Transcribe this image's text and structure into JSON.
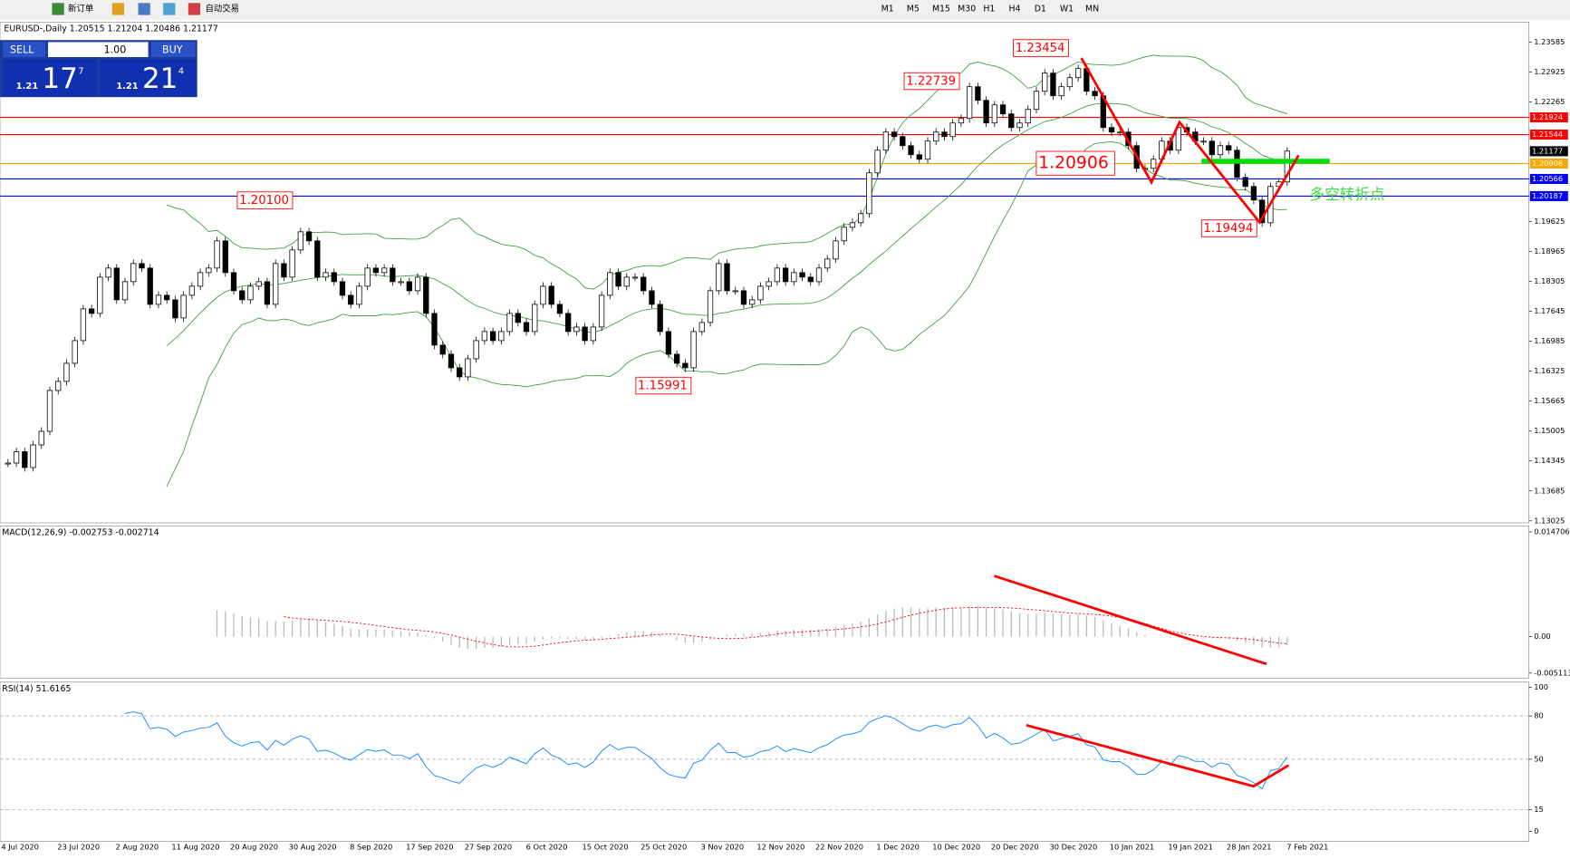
{
  "toolbar": {
    "new_order": "新订单",
    "auto_trading": "自动交易",
    "timeframes": [
      "M1",
      "M5",
      "M15",
      "M30",
      "H1",
      "H4",
      "D1",
      "W1",
      "MN"
    ]
  },
  "trade_panel": {
    "sell": "SELL",
    "buy": "BUY",
    "lots": "1.00",
    "sell_price": {
      "prefix": "1.21",
      "big": "17",
      "small": "7"
    },
    "buy_price": {
      "prefix": "1.21",
      "big": "21",
      "small": "4"
    }
  },
  "price_chart": {
    "header": "EURUSD-,Daily  1.20515 1.21204 1.20486 1.21177",
    "ylim": [
      1.13025,
      1.23585
    ],
    "yticks": [
      1.23585,
      1.22925,
      1.22265,
      1.19625,
      1.18965,
      1.18305,
      1.17645,
      1.16985,
      1.16325,
      1.15665,
      1.15005,
      1.14345,
      1.13685,
      1.13025
    ],
    "levels": [
      {
        "value": 1.21924,
        "color": "#ff0000"
      },
      {
        "value": 1.21544,
        "color": "#ff0000"
      },
      {
        "value": 1.20906,
        "color": "#ffa500"
      },
      {
        "value": 1.20566,
        "color": "#0000ff"
      },
      {
        "value": 1.20187,
        "color": "#0000ff"
      }
    ],
    "current_price": 1.21177,
    "closes": [
      1.143,
      1.1455,
      1.142,
      1.147,
      1.15,
      1.159,
      1.161,
      1.165,
      1.17,
      1.177,
      1.176,
      1.184,
      1.186,
      1.179,
      1.183,
      1.187,
      1.186,
      1.178,
      1.18,
      1.179,
      1.175,
      1.18,
      1.182,
      1.185,
      1.186,
      1.192,
      1.185,
      1.181,
      1.179,
      1.182,
      1.183,
      1.178,
      1.187,
      1.184,
      1.19,
      1.194,
      1.192,
      1.184,
      1.185,
      1.183,
      1.18,
      1.178,
      1.182,
      1.186,
      1.185,
      1.186,
      1.183,
      1.183,
      1.181,
      1.184,
      1.176,
      1.169,
      1.167,
      1.164,
      1.162,
      1.166,
      1.17,
      1.172,
      1.17,
      1.172,
      1.176,
      1.174,
      1.172,
      1.178,
      1.182,
      1.178,
      1.176,
      1.172,
      1.173,
      1.17,
      1.173,
      1.18,
      1.185,
      1.182,
      1.184,
      1.184,
      1.181,
      1.178,
      1.172,
      1.167,
      1.165,
      1.164,
      1.172,
      1.174,
      1.181,
      1.187,
      1.181,
      1.181,
      1.178,
      1.179,
      1.182,
      1.183,
      1.186,
      1.183,
      1.185,
      1.184,
      1.183,
      1.186,
      1.188,
      1.192,
      1.195,
      1.196,
      1.198,
      1.207,
      1.212,
      1.216,
      1.215,
      1.213,
      1.211,
      1.21,
      1.214,
      1.216,
      1.215,
      1.218,
      1.219,
      1.226,
      1.223,
      1.218,
      1.222,
      1.22,
      1.217,
      1.218,
      1.221,
      1.225,
      1.229,
      1.224,
      1.226,
      1.228,
      1.23,
      1.225,
      1.224,
      1.217,
      1.216,
      1.216,
      1.213,
      1.208,
      1.208,
      1.21,
      1.214,
      1.212,
      1.217,
      1.216,
      1.214,
      1.214,
      1.211,
      1.213,
      1.212,
      1.206,
      1.204,
      1.201,
      1.196,
      1.204,
      1.205,
      1.2118
    ],
    "annotations": [
      "1.23454",
      "1.22739",
      "1.20100",
      "1.15991",
      "1.20906",
      "1.19494"
    ],
    "note": "多空转折点"
  },
  "macd": {
    "label": "MACD(12,26,9) -0.002753 -0.002714",
    "ylim": [
      -0.005113,
      0.014706
    ],
    "yticks": [
      0.014706,
      {
        "value": 0,
        "label": "0.00"
      },
      -0.005113
    ]
  },
  "rsi": {
    "label": "RSI(14) 51.6165",
    "ylim": [
      0,
      100
    ],
    "yticks": [
      100,
      80,
      50,
      15,
      0
    ]
  },
  "dates": [
    "4 Jul 2020",
    "23 Jul 2020",
    "2 Aug 2020",
    "11 Aug 2020",
    "20 Aug 2020",
    "30 Aug 2020",
    "8 Sep 2020",
    "17 Sep 2020",
    "27 Sep 2020",
    "6 Oct 2020",
    "15 Oct 2020",
    "25 Oct 2020",
    "3 Nov 2020",
    "12 Nov 2020",
    "22 Nov 2020",
    "1 Dec 2020",
    "10 Dec 2020",
    "20 Dec 2020",
    "30 Dec 2020",
    "10 Jan 2021",
    "19 Jan 2021",
    "28 Jan 2021",
    "7 Feb 2021"
  ]
}
